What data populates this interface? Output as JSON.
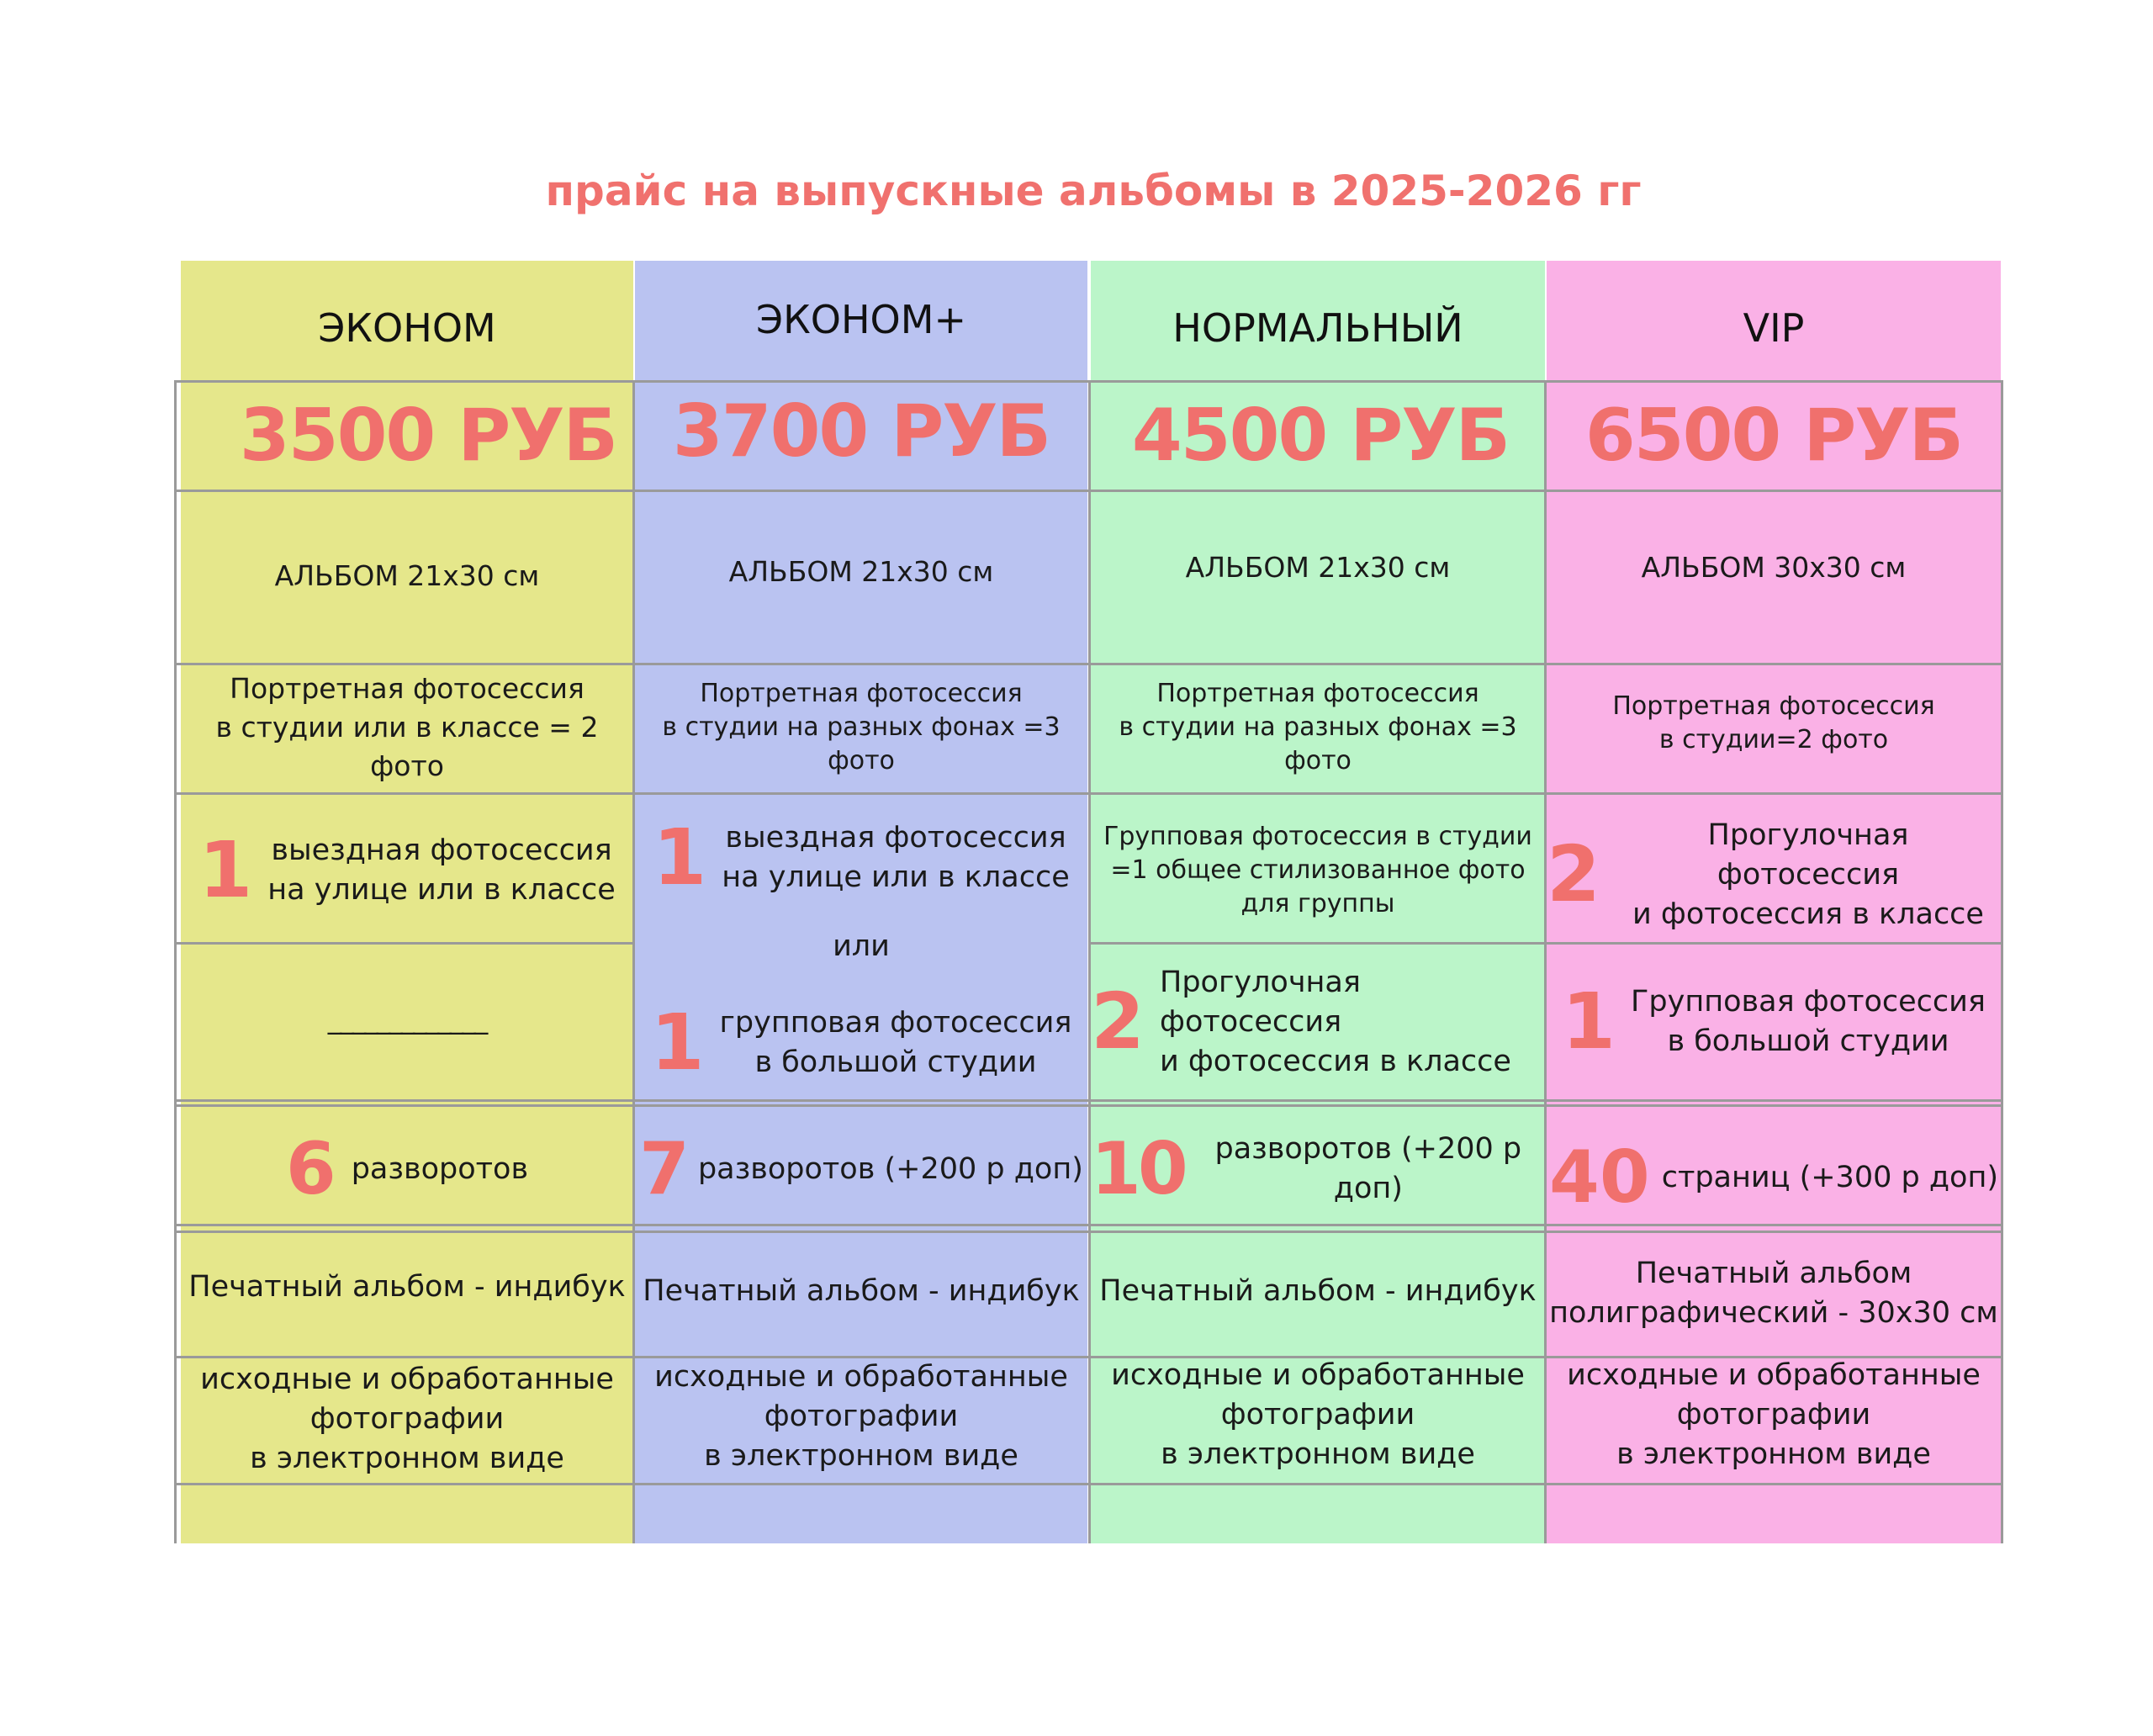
{
  "title": "прайс на выпускные альбомы в  2025-2026 гг",
  "columns": [
    {
      "name": "ЭКОНОМ",
      "price": "3500 РУБ",
      "album": "АЛЬБОМ 21x30 см",
      "portrait": [
        "Портретная фотосессия",
        "в студии или в классе = 2 фото"
      ],
      "session1": {
        "num": "1",
        "lines": [
          "выездная фотосессия",
          "на улице или в классе"
        ]
      },
      "session2": {
        "text": "_____________"
      },
      "spreads": {
        "num": "6",
        "text": "разворотов"
      },
      "print": [
        "Печатный альбом - индибук"
      ],
      "digital": [
        "исходные и обработанные",
        "фотографии",
        "в электронном виде"
      ]
    },
    {
      "name": "ЭКОНОМ+",
      "price": "3700 РУБ",
      "album": "АЛЬБОМ 21x30 см",
      "portrait": [
        "Портретная фотосессия",
        "в студии на разных фонах =3 фото"
      ],
      "session1": {
        "num": "1",
        "lines": [
          "выездная фотосессия",
          "на улице или в классе"
        ]
      },
      "or": "или",
      "session2": {
        "num": "1",
        "lines": [
          "групповая фотосессия",
          "в большой студии"
        ]
      },
      "spreads": {
        "num": "7",
        "text": "разворотов (+200 р доп)"
      },
      "print": [
        "Печатный альбом - индибук"
      ],
      "digital": [
        "исходные и обработанные",
        "фотографии",
        "в электронном виде"
      ]
    },
    {
      "name": "НОРМАЛЬНЫЙ",
      "price": "4500 РУБ",
      "album": "АЛЬБОМ 21x30 см",
      "portrait": [
        "Портретная фотосессия",
        "в студии на разных фонах =3 фото"
      ],
      "session1": {
        "lines": [
          "Групповая фотосессия в студии",
          "=1 общее стилизованное фото",
          "для группы"
        ]
      },
      "session2": {
        "num": "2",
        "lines": [
          "Прогулочная  фотосессия",
          "и фотосессия в классе"
        ]
      },
      "spreads": {
        "num": "10",
        "text": "разворотов (+200 р доп)"
      },
      "print": [
        "Печатный альбом - индибук"
      ],
      "digital": [
        "исходные и обработанные",
        "фотографии",
        "в электронном виде"
      ]
    },
    {
      "name": "VIP",
      "price": "6500 РУБ",
      "album": "АЛЬБОМ 30x30 см",
      "portrait": [
        "Портретная фотосессия",
        "в студии=2 фото"
      ],
      "session1": {
        "num": "2",
        "lines": [
          "Прогулочная фотосессия",
          "и фотосессия в классе"
        ]
      },
      "session2": {
        "num": "1",
        "lines": [
          "Групповая фотосессия",
          "в большой студии"
        ]
      },
      "spreads": {
        "num": "40",
        "text": "страниц  (+300 р доп)"
      },
      "print": [
        "Печатный альбом",
        "полиграфический - 30x30 см"
      ],
      "digital": [
        "исходные и обработанные",
        "фотографии",
        "в электронном виде"
      ]
    }
  ],
  "colors": {
    "accent": "#f0706d",
    "col1": "#e5e78b",
    "col2": "#bac3f1",
    "col3": "#bbf5c9",
    "col4": "#fab1e6",
    "grid": "#9a9a9a"
  }
}
